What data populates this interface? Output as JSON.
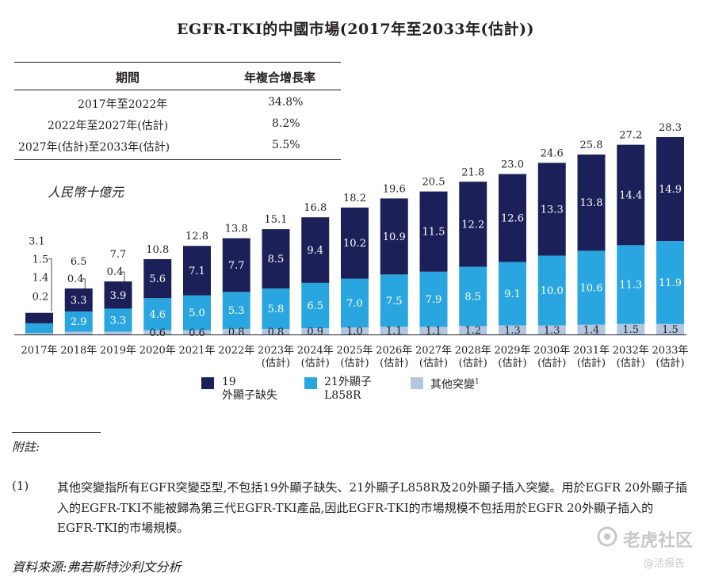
{
  "title": "EGFR-TKI的中國市場(2017年至2033年(估計))",
  "cagr_table": {
    "headers": [
      "期間",
      "年複合增長率"
    ],
    "rows": [
      {
        "period": "2017年至2022年",
        "rate": "34.8%"
      },
      {
        "period": "2022年至2027年(估計)",
        "rate": "8.2%"
      },
      {
        "period": "2027年(估計)至2033年(估計)",
        "rate": "5.5%"
      }
    ]
  },
  "unit_label": "人民幣十億元",
  "chart_data": {
    "type": "stacked-bar",
    "title": "EGFR-TKI的中國市場(2017年至2033年(估計))",
    "ylabel": "人民幣十億元",
    "categories": [
      [
        "2017年"
      ],
      [
        "2018年"
      ],
      [
        "2019年"
      ],
      [
        "2020年"
      ],
      [
        "2021年"
      ],
      [
        "2022年"
      ],
      [
        "2023年",
        "(估計)"
      ],
      [
        "2024年",
        "(估計)"
      ],
      [
        "2025年",
        "(估計)"
      ],
      [
        "2026年",
        "(估計)"
      ],
      [
        "2027年",
        "(估計)"
      ],
      [
        "2028年",
        "(估計)"
      ],
      [
        "2029年",
        "(估計)"
      ],
      [
        "2030年",
        "(估計)"
      ],
      [
        "2031年",
        "(估計)"
      ],
      [
        "2032年",
        "(估計)"
      ],
      [
        "2033年",
        "(估計)"
      ]
    ],
    "series": [
      {
        "name": "其他突變",
        "color": "#b3c6e0",
        "values": [
          0.2,
          0.4,
          0.4,
          0.6,
          0.6,
          0.8,
          0.8,
          0.9,
          1.0,
          1.1,
          1.1,
          1.2,
          1.3,
          1.3,
          1.4,
          1.5,
          1.5
        ]
      },
      {
        "name": "21外顯子L858R",
        "color": "#29a6df",
        "values": [
          1.4,
          2.9,
          3.3,
          4.6,
          5.0,
          5.3,
          5.8,
          6.5,
          7.0,
          7.5,
          7.9,
          8.5,
          9.1,
          10.0,
          10.6,
          11.3,
          11.9
        ]
      },
      {
        "name": "19外顯子缺失",
        "color": "#1b2158",
        "values": [
          1.5,
          3.3,
          3.9,
          5.6,
          7.1,
          7.7,
          8.5,
          9.4,
          10.2,
          10.9,
          11.5,
          12.2,
          12.6,
          13.3,
          13.8,
          14.4,
          14.9
        ]
      }
    ],
    "totals": [
      3.1,
      6.5,
      7.7,
      10.8,
      12.8,
      13.8,
      15.1,
      16.8,
      18.2,
      19.6,
      20.5,
      21.8,
      23.0,
      24.6,
      25.8,
      27.2,
      28.3
    ],
    "legend": [
      {
        "lines": [
          "19",
          "外顯子缺失"
        ],
        "color": "#1b2158"
      },
      {
        "lines": [
          "21外顯子",
          "L858R"
        ],
        "color": "#29a6df"
      },
      {
        "lines": [
          "其他突變"
        ],
        "sup": "1",
        "color": "#b3c6e0"
      }
    ]
  },
  "notes": {
    "heading": "附註:",
    "items": [
      {
        "num": "(1)",
        "text": "其他突變指所有EGFR突變亞型,不包括19外顯子缺失、21外顯子L858R及20外顯子插入突變。用於EGFR 20外顯子插入的EGFR-TKI不能被歸為第三代EGFR-TKI產品,因此EGFR-TKI的市場規模不包括用於EGFR 20外顯子插入的EGFR-TKI的市場規模。"
      }
    ]
  },
  "source": "資料來源:弗若斯特沙利文分析",
  "watermark": {
    "brand": "老虎社区",
    "sub": "@活报告"
  }
}
